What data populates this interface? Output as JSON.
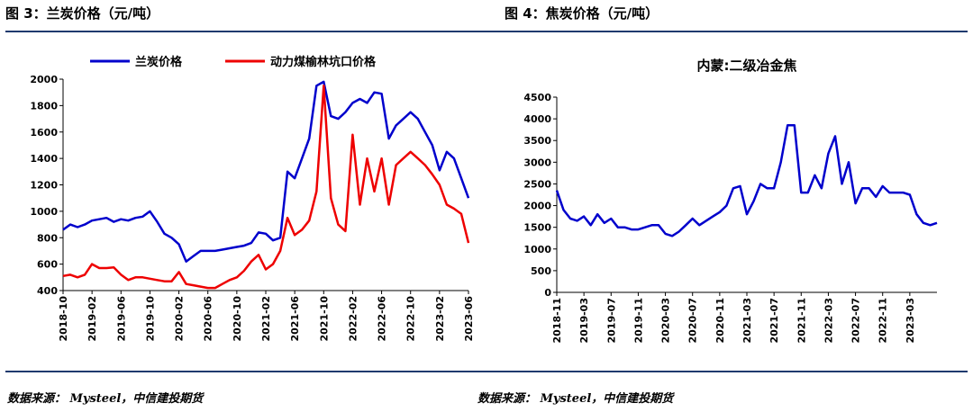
{
  "left": {
    "fig_title": "图 3：兰炭价格（元/吨）",
    "source": "数据来源：  Mysteel，中信建投期货"
  },
  "right": {
    "fig_title": "图 4：焦炭价格（元/吨）",
    "source": "数据来源：  Mysteel，中信建投期货"
  },
  "colors": {
    "rule": "#1f3a6e",
    "blue": "#0000cc",
    "red": "#ee0000"
  },
  "chart_data": [
    {
      "type": "line",
      "title": "",
      "xlabel": "",
      "ylabel": "",
      "xlim": [
        "2018-10",
        "2023-06"
      ],
      "ylim": [
        400,
        2000
      ],
      "yticks": [
        400,
        600,
        800,
        1000,
        1200,
        1400,
        1600,
        1800,
        2000
      ],
      "xticks": [
        "2018-10",
        "2019-02",
        "2019-06",
        "2019-10",
        "2020-02",
        "2020-06",
        "2020-10",
        "2021-02",
        "2021-06",
        "2021-10",
        "2022-02",
        "2022-06",
        "2022-10",
        "2023-02",
        "2023-06"
      ],
      "legend": "top",
      "grid": false,
      "series": [
        {
          "name": "兰炭价格",
          "color": "#0000cc",
          "points": [
            [
              "2018-10",
              860
            ],
            [
              "2018-11",
              900
            ],
            [
              "2018-12",
              880
            ],
            [
              "2019-01",
              900
            ],
            [
              "2019-02",
              930
            ],
            [
              "2019-03",
              940
            ],
            [
              "2019-04",
              950
            ],
            [
              "2019-05",
              920
            ],
            [
              "2019-06",
              940
            ],
            [
              "2019-07",
              930
            ],
            [
              "2019-08",
              950
            ],
            [
              "2019-09",
              960
            ],
            [
              "2019-10",
              1000
            ],
            [
              "2019-11",
              920
            ],
            [
              "2019-12",
              830
            ],
            [
              "2020-01",
              800
            ],
            [
              "2020-02",
              750
            ],
            [
              "2020-03",
              620
            ],
            [
              "2020-04",
              660
            ],
            [
              "2020-05",
              700
            ],
            [
              "2020-06",
              700
            ],
            [
              "2020-07",
              700
            ],
            [
              "2020-08",
              710
            ],
            [
              "2020-09",
              720
            ],
            [
              "2020-10",
              730
            ],
            [
              "2020-11",
              740
            ],
            [
              "2020-12",
              760
            ],
            [
              "2021-01",
              840
            ],
            [
              "2021-02",
              830
            ],
            [
              "2021-03",
              780
            ],
            [
              "2021-04",
              800
            ],
            [
              "2021-05",
              1300
            ],
            [
              "2021-06",
              1250
            ],
            [
              "2021-07",
              1400
            ],
            [
              "2021-08",
              1550
            ],
            [
              "2021-09",
              1950
            ],
            [
              "2021-10",
              1980
            ],
            [
              "2021-11",
              1720
            ],
            [
              "2021-12",
              1700
            ],
            [
              "2022-01",
              1750
            ],
            [
              "2022-02",
              1820
            ],
            [
              "2022-03",
              1850
            ],
            [
              "2022-04",
              1820
            ],
            [
              "2022-05",
              1900
            ],
            [
              "2022-06",
              1890
            ],
            [
              "2022-07",
              1550
            ],
            [
              "2022-08",
              1650
            ],
            [
              "2022-09",
              1700
            ],
            [
              "2022-10",
              1750
            ],
            [
              "2022-11",
              1700
            ],
            [
              "2022-12",
              1600
            ],
            [
              "2023-01",
              1500
            ],
            [
              "2023-02",
              1310
            ],
            [
              "2023-03",
              1450
            ],
            [
              "2023-04",
              1400
            ],
            [
              "2023-05",
              1250
            ],
            [
              "2023-06",
              1100
            ]
          ]
        },
        {
          "name": "动力煤榆林坑口价格",
          "color": "#ee0000",
          "points": [
            [
              "2018-10",
              510
            ],
            [
              "2018-11",
              520
            ],
            [
              "2018-12",
              500
            ],
            [
              "2019-01",
              520
            ],
            [
              "2019-02",
              600
            ],
            [
              "2019-03",
              570
            ],
            [
              "2019-04",
              570
            ],
            [
              "2019-05",
              575
            ],
            [
              "2019-06",
              520
            ],
            [
              "2019-07",
              480
            ],
            [
              "2019-08",
              500
            ],
            [
              "2019-09",
              500
            ],
            [
              "2019-10",
              490
            ],
            [
              "2019-11",
              480
            ],
            [
              "2019-12",
              470
            ],
            [
              "2020-01",
              470
            ],
            [
              "2020-02",
              540
            ],
            [
              "2020-03",
              450
            ],
            [
              "2020-04",
              440
            ],
            [
              "2020-05",
              430
            ],
            [
              "2020-06",
              420
            ],
            [
              "2020-07",
              420
            ],
            [
              "2020-08",
              450
            ],
            [
              "2020-09",
              480
            ],
            [
              "2020-10",
              500
            ],
            [
              "2020-11",
              550
            ],
            [
              "2020-12",
              620
            ],
            [
              "2021-01",
              670
            ],
            [
              "2021-02",
              560
            ],
            [
              "2021-03",
              600
            ],
            [
              "2021-04",
              700
            ],
            [
              "2021-05",
              950
            ],
            [
              "2021-06",
              820
            ],
            [
              "2021-07",
              860
            ],
            [
              "2021-08",
              930
            ],
            [
              "2021-09",
              1150
            ],
            [
              "2021-10",
              1950
            ],
            [
              "2021-11",
              1100
            ],
            [
              "2021-12",
              900
            ],
            [
              "2022-01",
              850
            ],
            [
              "2022-02",
              1580
            ],
            [
              "2022-03",
              1050
            ],
            [
              "2022-04",
              1400
            ],
            [
              "2022-05",
              1150
            ],
            [
              "2022-06",
              1400
            ],
            [
              "2022-07",
              1050
            ],
            [
              "2022-08",
              1350
            ],
            [
              "2022-09",
              1400
            ],
            [
              "2022-10",
              1450
            ],
            [
              "2022-11",
              1400
            ],
            [
              "2022-12",
              1350
            ],
            [
              "2023-01",
              1280
            ],
            [
              "2023-02",
              1200
            ],
            [
              "2023-03",
              1050
            ],
            [
              "2023-04",
              1020
            ],
            [
              "2023-05",
              980
            ],
            [
              "2023-06",
              760
            ]
          ]
        }
      ]
    },
    {
      "type": "line",
      "title": "内蒙:二级冶金焦",
      "xlabel": "",
      "ylabel": "",
      "xlim": [
        "2018-11",
        "2023-07"
      ],
      "ylim": [
        0,
        4500
      ],
      "yticks": [
        0,
        500,
        1000,
        1500,
        2000,
        2500,
        3000,
        3500,
        4000,
        4500
      ],
      "xticks": [
        "2018-11",
        "2019-03",
        "2019-07",
        "2019-11",
        "2020-03",
        "2020-07",
        "2020-11",
        "2021-03",
        "2021-07",
        "2021-11",
        "2022-03",
        "2022-07",
        "2022-11",
        "2023-03"
      ],
      "grid": false,
      "series": [
        {
          "name": "",
          "color": "#0000cc",
          "points": [
            [
              "2018-11",
              2350
            ],
            [
              "2018-12",
              1900
            ],
            [
              "2019-01",
              1700
            ],
            [
              "2019-02",
              1650
            ],
            [
              "2019-03",
              1750
            ],
            [
              "2019-04",
              1550
            ],
            [
              "2019-05",
              1800
            ],
            [
              "2019-06",
              1600
            ],
            [
              "2019-07",
              1700
            ],
            [
              "2019-08",
              1500
            ],
            [
              "2019-09",
              1500
            ],
            [
              "2019-10",
              1450
            ],
            [
              "2019-11",
              1450
            ],
            [
              "2019-12",
              1500
            ],
            [
              "2020-01",
              1550
            ],
            [
              "2020-02",
              1550
            ],
            [
              "2020-03",
              1350
            ],
            [
              "2020-04",
              1300
            ],
            [
              "2020-05",
              1400
            ],
            [
              "2020-06",
              1550
            ],
            [
              "2020-07",
              1700
            ],
            [
              "2020-08",
              1550
            ],
            [
              "2020-09",
              1650
            ],
            [
              "2020-10",
              1750
            ],
            [
              "2020-11",
              1850
            ],
            [
              "2020-12",
              2000
            ],
            [
              "2021-01",
              2400
            ],
            [
              "2021-02",
              2450
            ],
            [
              "2021-03",
              1800
            ],
            [
              "2021-04",
              2100
            ],
            [
              "2021-05",
              2500
            ],
            [
              "2021-06",
              2400
            ],
            [
              "2021-07",
              2400
            ],
            [
              "2021-08",
              3000
            ],
            [
              "2021-09",
              3850
            ],
            [
              "2021-10",
              3850
            ],
            [
              "2021-11",
              2300
            ],
            [
              "2021-12",
              2300
            ],
            [
              "2022-01",
              2700
            ],
            [
              "2022-02",
              2400
            ],
            [
              "2022-03",
              3200
            ],
            [
              "2022-04",
              3600
            ],
            [
              "2022-05",
              2500
            ],
            [
              "2022-06",
              3000
            ],
            [
              "2022-07",
              2050
            ],
            [
              "2022-08",
              2400
            ],
            [
              "2022-09",
              2400
            ],
            [
              "2022-10",
              2200
            ],
            [
              "2022-11",
              2450
            ],
            [
              "2022-12",
              2300
            ],
            [
              "2023-01",
              2300
            ],
            [
              "2023-02",
              2300
            ],
            [
              "2023-03",
              2250
            ],
            [
              "2023-04",
              1800
            ],
            [
              "2023-05",
              1600
            ],
            [
              "2023-06",
              1550
            ],
            [
              "2023-07",
              1600
            ]
          ]
        }
      ]
    }
  ]
}
